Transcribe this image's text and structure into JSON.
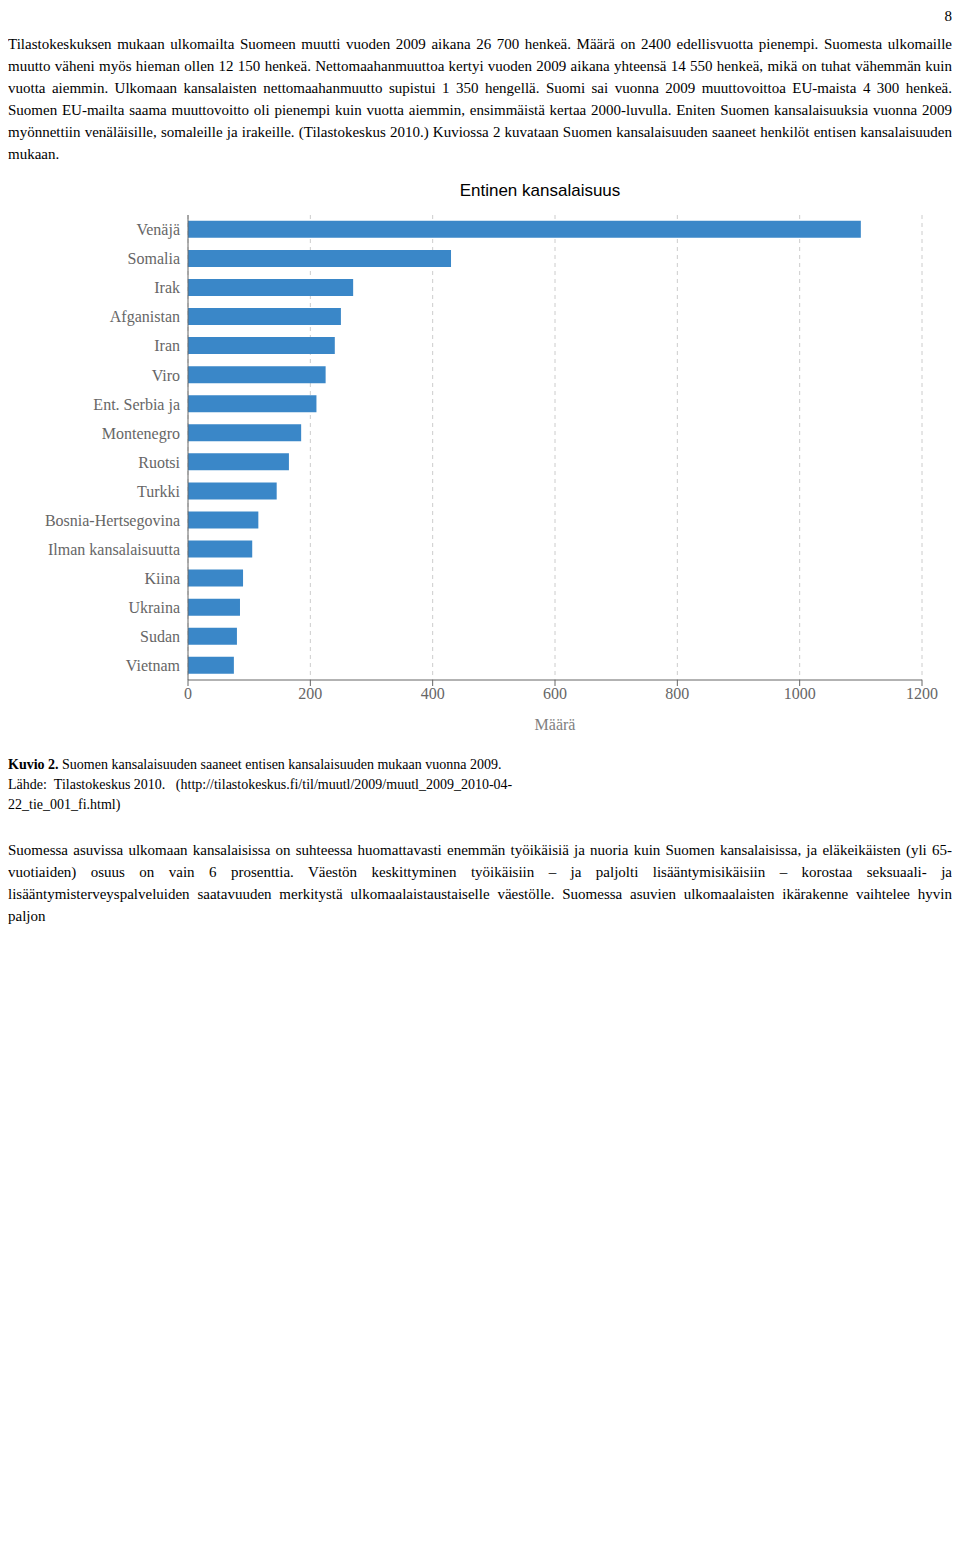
{
  "chart_data": {
    "type": "bar",
    "orientation": "horizontal",
    "title": "Entinen kansalaisuus",
    "xlabel": "Määrä",
    "categories": [
      "Vietnam",
      "Sudan",
      "Ukraina",
      "Kiina",
      "Ilman kansalaisuutta",
      "Bosnia-Hertsegovina",
      "Turkki",
      "Ruotsi",
      "Montenegro",
      "Ent. Serbia ja",
      "Viro",
      "Iran",
      "Afganistan",
      "Irak",
      "Somalia",
      "Venäjä"
    ],
    "values": [
      75,
      80,
      85,
      90,
      105,
      115,
      145,
      165,
      185,
      210,
      225,
      240,
      250,
      270,
      430,
      1100
    ],
    "color": "#3a87c8",
    "xlim": [
      0,
      1200
    ],
    "xticks": [
      0,
      200,
      400,
      600,
      800,
      1000,
      1200
    ],
    "grid": true,
    "annotations": [
      "8",
      "Tilastokeskuksen mukaan ulkomailta Suomeen muutti vuoden 2009 aikana 26 700 henkeä. Määrä on 2400 edellisvuotta pienempi. Suomesta ulkomaille muutto väheni myös hieman ollen 12 150 henkeä. Nettomaahanmuuttoa kertyi vuoden 2009 aikana yhteensä 14 550 henkeä, mikä on tuhat vähemmän kuin vuotta aiemmin. Ulkomaan kansalaisten nettomaahanmuutto supistui 1 350 hengellä. Suomi sai vuonna 2009 muuttovoittoa EU-maista 4 300 henkeä. Suomen EU-mailta saama muuttovoitto oli pienempi kuin vuotta aiemmin, ensimmäistä kertaa 2000-luvulla. Eniten Suomen kansalaisuuksia vuonna 2009 myönnettiin venäläisille, somaleille ja irakeille. (Tilastokeskus 2010.) Kuviossa 2 kuvataan Suomen kansalaisuuden saaneet henkilöt entisen kansalaisuuden mukaan.",
      "Kuvio 2.",
      "Suomen kansalaisuuden saaneet entisen kansalaisuuden mukaan vuonna 2009.",
      "Lähde:  Tilastokeskus 2010.   (http://tilastokeskus.fi/til/muutl/2009/muutl_2009_2010-04-",
      "22_tie_001_fi.html)",
      "Suomessa asuvissa ulkomaan kansalaisissa on suhteessa huomattavasti enemmän työikäisiä ja nuoria kuin Suomen kansalaisissa, ja eläkeikäisten (yli 65-vuotiaiden) osuus on vain 6 prosenttia. Väestön keskittyminen työikäisiin – ja paljolti lisääntymisikäisiin – korostaa seksuaali- ja lisääntymisterveyspalveluiden saatavuuden merkitystä ulkomaalaistaustaiselle väestölle. Suomessa asuvien ulkomaalaisten ikärakenne vaihtelee hyvin paljon"
    ]
  }
}
